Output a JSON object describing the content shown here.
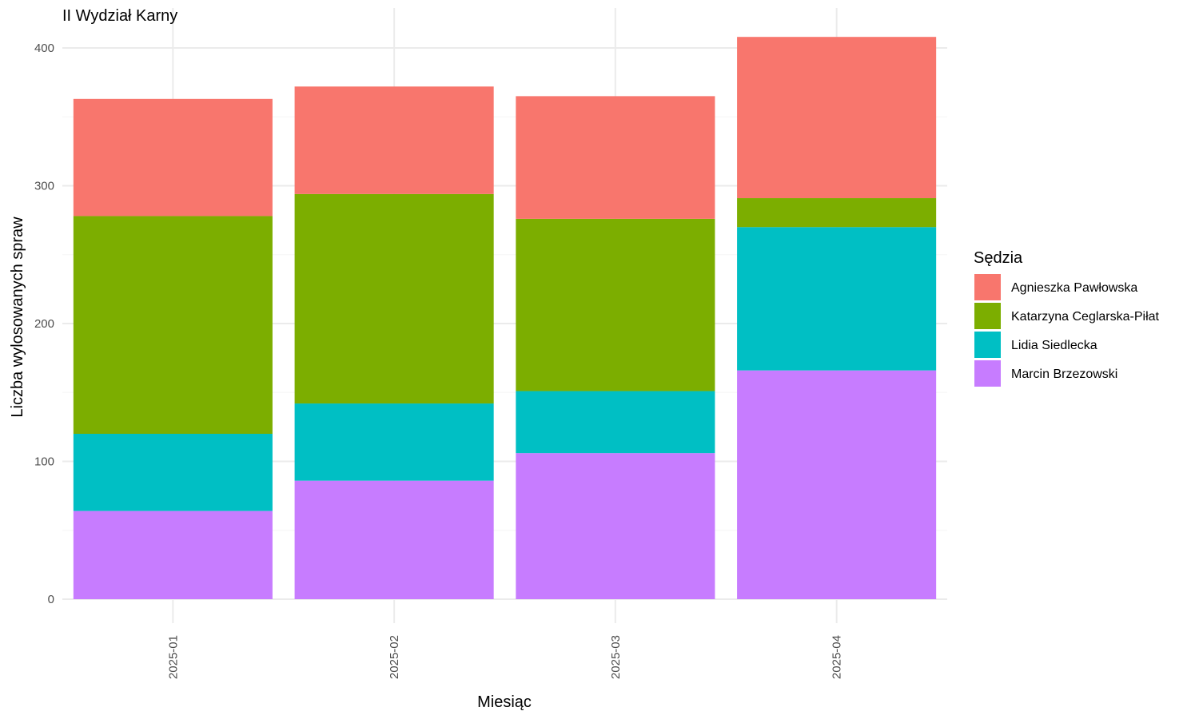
{
  "chart_data": {
    "type": "bar",
    "stacked": true,
    "title": "II Wydział Karny",
    "xlabel": "Miesiąc",
    "ylabel": "Liczba wylosowanych spraw",
    "categories": [
      "2025-01",
      "2025-02",
      "2025-03",
      "2025-04"
    ],
    "ylim": [
      0,
      410
    ],
    "yticks": [
      0,
      100,
      200,
      300,
      400
    ],
    "grid": true,
    "legend": {
      "title": "Sędzia",
      "position": "right"
    },
    "series": [
      {
        "name": "Marcin Brzezowski",
        "color": "#C77CFF",
        "values": [
          64,
          86,
          106,
          166
        ]
      },
      {
        "name": "Lidia Siedlecka",
        "color": "#00BFC4",
        "values": [
          56,
          56,
          45,
          104
        ]
      },
      {
        "name": "Katarzyna Ceglarska-Piłat",
        "color": "#7CAE00",
        "values": [
          158,
          152,
          125,
          21
        ]
      },
      {
        "name": "Agnieszka Pawłowska",
        "color": "#F8766D",
        "values": [
          85,
          78,
          89,
          117
        ]
      }
    ],
    "legend_order": [
      "Agnieszka Pawłowska",
      "Katarzyna Ceglarska-Piłat",
      "Lidia Siedlecka",
      "Marcin Brzezowski"
    ]
  }
}
